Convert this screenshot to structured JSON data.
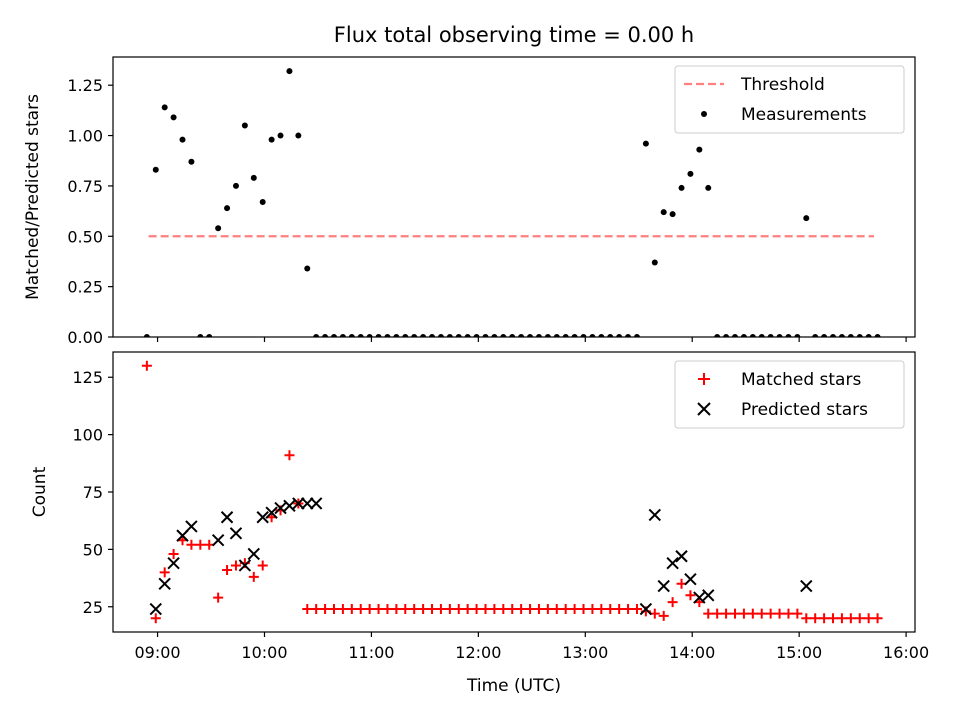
{
  "figure": {
    "title": "Flux total observing time = 0.00 h",
    "xlabel": "Time (UTC)"
  },
  "chart_data": [
    {
      "type": "scatter",
      "panel": "top",
      "ylabel": "Matched/Predicted stars",
      "xlabel": "",
      "xlim": [
        "08:35",
        "16:05"
      ],
      "ylim": [
        0,
        1.39
      ],
      "x_ticks": [
        "09:00",
        "10:00",
        "11:00",
        "12:00",
        "13:00",
        "14:00",
        "15:00",
        "16:00"
      ],
      "y_ticks": [
        "0.00",
        "0.25",
        "0.50",
        "0.75",
        "1.00",
        "1.25"
      ],
      "legend_position": "top-right",
      "grid": false,
      "threshold": {
        "name": "Threshold",
        "value": 0.5,
        "x_range": [
          "08:55",
          "15:42"
        ],
        "color": "#ff7f7f",
        "style": "dashed"
      },
      "series": [
        {
          "name": "Measurements",
          "marker": "dot",
          "color": "#000000",
          "x": [
            "08:54",
            "08:59",
            "09:04",
            "09:09",
            "09:14",
            "09:19",
            "09:24",
            "09:29",
            "09:34",
            "09:39",
            "09:44",
            "09:49",
            "09:54",
            "09:59",
            "10:04",
            "10:09",
            "10:14",
            "10:19",
            "10:24",
            "10:29",
            "10:34",
            "10:39",
            "10:44",
            "10:49",
            "10:54",
            "10:59",
            "11:04",
            "11:09",
            "11:14",
            "11:19",
            "11:24",
            "11:29",
            "11:34",
            "11:39",
            "11:44",
            "11:49",
            "11:54",
            "11:59",
            "12:04",
            "12:09",
            "12:14",
            "12:19",
            "12:24",
            "12:29",
            "12:34",
            "12:39",
            "12:44",
            "12:49",
            "12:54",
            "12:59",
            "13:04",
            "13:09",
            "13:14",
            "13:19",
            "13:24",
            "13:29",
            "13:34",
            "13:39",
            "13:44",
            "13:49",
            "13:54",
            "13:59",
            "14:04",
            "14:09",
            "14:14",
            "14:19",
            "14:24",
            "14:29",
            "14:34",
            "14:39",
            "14:44",
            "14:49",
            "14:54",
            "14:59",
            "15:04",
            "15:09",
            "15:14",
            "15:19",
            "15:24",
            "15:29",
            "15:34",
            "15:39",
            "15:44"
          ],
          "y": [
            0.0,
            0.83,
            1.14,
            1.09,
            0.98,
            0.87,
            0.0,
            0.0,
            0.54,
            0.64,
            0.75,
            1.05,
            0.79,
            0.67,
            0.98,
            1.0,
            1.32,
            1.0,
            0.34,
            0.0,
            0.0,
            0.0,
            0.0,
            0.0,
            0.0,
            0.0,
            0.0,
            0.0,
            0.0,
            0.0,
            0.0,
            0.0,
            0.0,
            0.0,
            0.0,
            0.0,
            0.0,
            0.0,
            0.0,
            0.0,
            0.0,
            0.0,
            0.0,
            0.0,
            0.0,
            0.0,
            0.0,
            0.0,
            0.0,
            0.0,
            0.0,
            0.0,
            0.0,
            0.0,
            0.0,
            0.0,
            0.96,
            0.37,
            0.62,
            0.61,
            0.74,
            0.81,
            0.93,
            0.74,
            0.0,
            0.0,
            0.0,
            0.0,
            0.0,
            0.0,
            0.0,
            0.0,
            0.0,
            0.0,
            0.59,
            0.0,
            0.0,
            0.0,
            0.0,
            0.0,
            0.0,
            0.0,
            0.0
          ]
        }
      ]
    },
    {
      "type": "scatter",
      "panel": "bottom",
      "ylabel": "Count",
      "xlabel": "Time (UTC)",
      "xlim": [
        "08:35",
        "16:05"
      ],
      "ylim": [
        14,
        136
      ],
      "x_ticks": [
        "09:00",
        "10:00",
        "11:00",
        "12:00",
        "13:00",
        "14:00",
        "15:00",
        "16:00"
      ],
      "y_ticks": [
        "25",
        "50",
        "75",
        "100",
        "125"
      ],
      "legend_position": "top-right",
      "grid": false,
      "series": [
        {
          "name": "Matched stars",
          "marker": "plus",
          "color": "#ff0000",
          "x": [
            "08:54",
            "08:59",
            "09:04",
            "09:09",
            "09:14",
            "09:19",
            "09:24",
            "09:29",
            "09:34",
            "09:39",
            "09:44",
            "09:49",
            "09:54",
            "09:59",
            "10:04",
            "10:09",
            "10:14",
            "10:19",
            "10:24",
            "10:29",
            "10:34",
            "10:39",
            "10:44",
            "10:49",
            "10:54",
            "10:59",
            "11:04",
            "11:09",
            "11:14",
            "11:19",
            "11:24",
            "11:29",
            "11:34",
            "11:39",
            "11:44",
            "11:49",
            "11:54",
            "11:59",
            "12:04",
            "12:09",
            "12:14",
            "12:19",
            "12:24",
            "12:29",
            "12:34",
            "12:39",
            "12:44",
            "12:49",
            "12:54",
            "12:59",
            "13:04",
            "13:09",
            "13:14",
            "13:19",
            "13:24",
            "13:29",
            "13:34",
            "13:39",
            "13:44",
            "13:49",
            "13:54",
            "13:59",
            "14:04",
            "14:09",
            "14:14",
            "14:19",
            "14:24",
            "14:29",
            "14:34",
            "14:39",
            "14:44",
            "14:49",
            "14:54",
            "14:59",
            "15:04",
            "15:09",
            "15:14",
            "15:19",
            "15:24",
            "15:29",
            "15:34",
            "15:39",
            "15:44"
          ],
          "y": [
            130,
            20,
            40,
            48,
            54,
            52,
            52,
            52,
            29,
            41,
            43,
            44,
            38,
            43,
            64,
            67,
            91,
            70,
            24,
            24,
            24,
            24,
            24,
            24,
            24,
            24,
            24,
            24,
            24,
            24,
            24,
            24,
            24,
            24,
            24,
            24,
            24,
            24,
            24,
            24,
            24,
            24,
            24,
            24,
            24,
            24,
            24,
            24,
            24,
            24,
            24,
            24,
            24,
            24,
            24,
            24,
            23,
            22,
            21,
            27,
            35,
            30,
            27,
            22,
            22,
            22,
            22,
            22,
            22,
            22,
            22,
            22,
            22,
            22,
            20,
            20,
            20,
            20,
            20,
            20,
            20,
            20,
            20
          ]
        },
        {
          "name": "Predicted stars",
          "marker": "x",
          "color": "#000000",
          "x": [
            "08:59",
            "09:04",
            "09:09",
            "09:14",
            "09:19",
            "09:34",
            "09:39",
            "09:44",
            "09:49",
            "09:54",
            "09:59",
            "10:04",
            "10:09",
            "10:14",
            "10:19",
            "10:24",
            "10:29",
            "13:34",
            "13:39",
            "13:44",
            "13:49",
            "13:54",
            "13:59",
            "14:04",
            "14:09",
            "15:04"
          ],
          "y": [
            24,
            35,
            44,
            56,
            60,
            54,
            64,
            57,
            43,
            48,
            64,
            66,
            68,
            69,
            70,
            70,
            70,
            24,
            65,
            34,
            44,
            47,
            37,
            29,
            30,
            34
          ]
        }
      ]
    }
  ]
}
